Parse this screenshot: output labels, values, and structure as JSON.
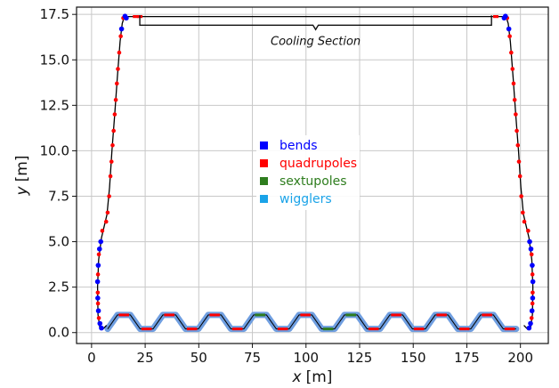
{
  "chart_data": {
    "type": "scatter",
    "title": "",
    "xlabel": "x",
    "xlabel_unit": "[m]",
    "ylabel": "y",
    "ylabel_unit": "[m]",
    "xlim": [
      -7,
      213
    ],
    "ylim": [
      -0.6,
      17.9
    ],
    "xticks": [
      0,
      25,
      50,
      75,
      100,
      125,
      150,
      175,
      200
    ],
    "yticks": [
      0.0,
      2.5,
      5.0,
      7.5,
      10.0,
      12.5,
      15.0,
      17.5
    ],
    "xtick_labels": [
      "0",
      "25",
      "50",
      "75",
      "100",
      "125",
      "150",
      "175",
      "200"
    ],
    "ytick_labels": [
      "0.0",
      "2.5",
      "5.0",
      "7.5",
      "10.0",
      "12.5",
      "15.0",
      "17.5"
    ],
    "grid": true,
    "legend_position": "center",
    "legend": [
      {
        "name": "bends",
        "color": "#0000ff"
      },
      {
        "name": "quadrupoles",
        "color": "#ff0000"
      },
      {
        "name": "sextupoles",
        "color": "#2e7d1e"
      },
      {
        "name": "wigglers",
        "color": "#1aa3e8"
      }
    ],
    "annotation": {
      "text": "Cooling Section",
      "x_start": 22.5,
      "x_end": 186.5,
      "y": 17.25
    },
    "path": {
      "color": "#000000",
      "points": [
        [
          15.3,
          17.38
        ],
        [
          14.3,
          17.0
        ],
        [
          13.3,
          16.0
        ],
        [
          12.0,
          14.0
        ],
        [
          10.8,
          12.0
        ],
        [
          9.5,
          10.0
        ],
        [
          8.4,
          8.0
        ],
        [
          7.2,
          6.5
        ],
        [
          4.6,
          5.2
        ],
        [
          3.3,
          4.0
        ],
        [
          2.8,
          2.5
        ],
        [
          3.0,
          1.0
        ],
        [
          3.8,
          0.3
        ],
        [
          5.2,
          0.18
        ],
        [
          7.0,
          0.4
        ]
      ]
    },
    "wigglers": {
      "color": "#6f9ee0",
      "x_start": 7.5,
      "x_end": 198,
      "y_low": 0.2,
      "y_high": 0.97,
      "periods": 9,
      "flat_length": 6
    },
    "quadrupoles_left": [
      [
        14.8,
        17.3
      ],
      [
        13.6,
        16.3
      ],
      [
        12.9,
        15.4
      ],
      [
        12.3,
        14.5
      ],
      [
        11.8,
        13.7
      ],
      [
        11.3,
        12.8
      ],
      [
        10.8,
        12.0
      ],
      [
        10.3,
        11.1
      ],
      [
        9.8,
        10.3
      ],
      [
        9.3,
        9.4
      ],
      [
        8.8,
        8.6
      ],
      [
        8.2,
        7.5
      ],
      [
        7.5,
        6.6
      ],
      [
        6.8,
        6.1
      ],
      [
        5.0,
        5.6
      ],
      [
        3.4,
        4.3
      ],
      [
        3.0,
        3.2
      ],
      [
        2.9,
        2.2
      ],
      [
        3.0,
        1.6
      ],
      [
        3.4,
        0.8
      ]
    ],
    "bends_left": [
      [
        15.6,
        17.4
      ],
      [
        16.2,
        17.3
      ],
      [
        14.0,
        16.7
      ],
      [
        4.3,
        5.0
      ],
      [
        3.7,
        4.6
      ],
      [
        3.1,
        3.7
      ],
      [
        2.8,
        2.8
      ],
      [
        2.9,
        1.9
      ],
      [
        3.2,
        1.2
      ],
      [
        3.9,
        0.5
      ],
      [
        4.6,
        0.25
      ]
    ],
    "quadrupoles_top": [
      20.5,
      22.5,
      188.5
    ]
  }
}
